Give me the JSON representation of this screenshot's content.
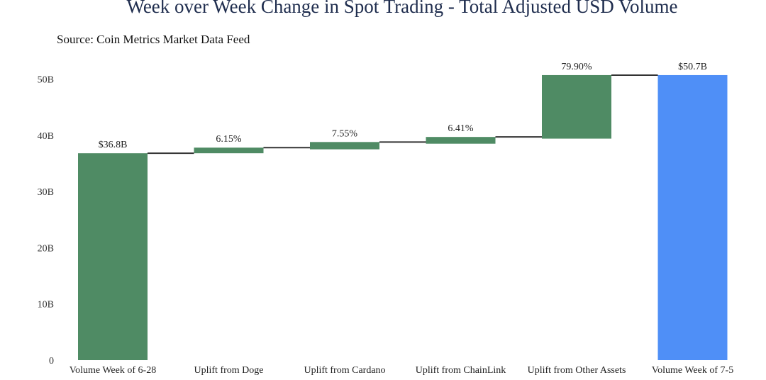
{
  "chart_data": {
    "type": "waterfall",
    "title": "Week over Week Change in Spot Trading - Total Adjusted USD Volume",
    "subtitle": "Source: Coin Metrics Market Data Feed",
    "ylim": [
      0,
      51
    ],
    "yticks": [
      0,
      10,
      20,
      30,
      40,
      50
    ],
    "ytick_labels": [
      "0",
      "10B",
      "20B",
      "30B",
      "40B",
      "50B"
    ],
    "grid": false,
    "categories": [
      "Volume Week of 6-28",
      "Uplift from Doge",
      "Uplift from Cardano",
      "Uplift from ChainLink",
      "Uplift from Other Assets",
      "Volume Week of 7-5"
    ],
    "bars": [
      {
        "kind": "total",
        "start": 0,
        "end": 36.8,
        "label": "$36.8B"
      },
      {
        "kind": "delta",
        "start": 36.8,
        "end": 37.8,
        "label": "6.15%"
      },
      {
        "kind": "delta",
        "start": 37.5,
        "end": 38.8,
        "label": "7.55%"
      },
      {
        "kind": "delta",
        "start": 38.5,
        "end": 39.7,
        "label": "6.41%"
      },
      {
        "kind": "delta",
        "start": 39.4,
        "end": 50.7,
        "label": "79.90%"
      },
      {
        "kind": "total",
        "start": 0,
        "end": 50.7,
        "label": "$50.7B"
      }
    ],
    "colors": {
      "delta": "#4f8b64",
      "total_start": "#4f8b64",
      "total_end": "#4f8ff7",
      "connector": "#333333"
    }
  }
}
